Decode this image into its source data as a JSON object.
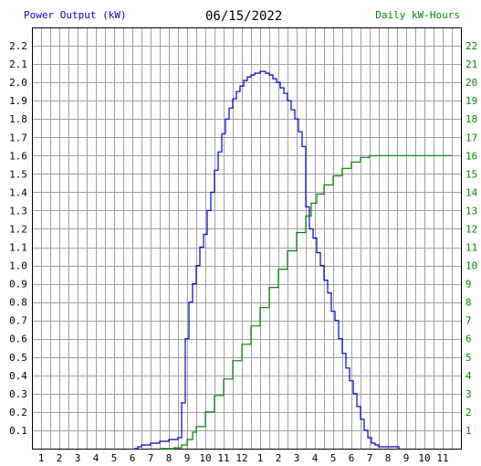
{
  "header": {
    "left_title": "Power Output (kW)",
    "date": "06/15/2022",
    "right_title": "Daily kW-Hours"
  },
  "chart_data": {
    "type": "line",
    "x_ticks": [
      "1",
      "2",
      "3",
      "4",
      "5",
      "6",
      "7",
      "8",
      "9",
      "10",
      "11",
      "12",
      "1",
      "2",
      "3",
      "4",
      "5",
      "6",
      "7",
      "8",
      "9",
      "10",
      "11"
    ],
    "ylim_left": [
      0,
      2.3
    ],
    "ylim_right": [
      0,
      23
    ],
    "y_ticks_left": [
      "0.1",
      "0.2",
      "0.3",
      "0.4",
      "0.5",
      "0.6",
      "0.7",
      "0.8",
      "0.9",
      "1.0",
      "1.1",
      "1.2",
      "1.3",
      "1.4",
      "1.5",
      "1.6",
      "1.7",
      "1.8",
      "1.9",
      "2.0",
      "2.1",
      "2.2"
    ],
    "y_ticks_right": [
      "1",
      "2",
      "3",
      "4",
      "5",
      "6",
      "7",
      "8",
      "9",
      "10",
      "11",
      "12",
      "13",
      "14",
      "15",
      "16",
      "17",
      "18",
      "19",
      "20",
      "21",
      "22"
    ],
    "grid": true,
    "colors": {
      "power": "#0000cc",
      "energy": "#008800",
      "grid": "#a0a0a0"
    },
    "series": [
      {
        "axis": "left",
        "color": "#0000cc",
        "points": [
          [
            5.6,
            0
          ],
          [
            5.8,
            0.01
          ],
          [
            6.0,
            0.02
          ],
          [
            6.5,
            0.03
          ],
          [
            7.0,
            0.04
          ],
          [
            7.5,
            0.05
          ],
          [
            8.0,
            0.06
          ],
          [
            8.2,
            0.25
          ],
          [
            8.4,
            0.6
          ],
          [
            8.6,
            0.8
          ],
          [
            8.8,
            0.9
          ],
          [
            9.0,
            1.0
          ],
          [
            9.2,
            1.1
          ],
          [
            9.4,
            1.17
          ],
          [
            9.6,
            1.3
          ],
          [
            9.8,
            1.4
          ],
          [
            10.0,
            1.52
          ],
          [
            10.2,
            1.62
          ],
          [
            10.4,
            1.72
          ],
          [
            10.6,
            1.8
          ],
          [
            10.8,
            1.86
          ],
          [
            11.0,
            1.91
          ],
          [
            11.2,
            1.95
          ],
          [
            11.4,
            1.98
          ],
          [
            11.6,
            2.01
          ],
          [
            11.8,
            2.03
          ],
          [
            12.0,
            2.04
          ],
          [
            12.2,
            2.05
          ],
          [
            12.5,
            2.06
          ],
          [
            12.8,
            2.05
          ],
          [
            13.0,
            2.04
          ],
          [
            13.2,
            2.02
          ],
          [
            13.4,
            2.0
          ],
          [
            13.6,
            1.97
          ],
          [
            13.8,
            1.94
          ],
          [
            14.0,
            1.9
          ],
          [
            14.2,
            1.85
          ],
          [
            14.4,
            1.8
          ],
          [
            14.6,
            1.73
          ],
          [
            14.8,
            1.65
          ],
          [
            15.0,
            1.32
          ],
          [
            15.2,
            1.2
          ],
          [
            15.4,
            1.15
          ],
          [
            15.6,
            1.07
          ],
          [
            15.8,
            1.0
          ],
          [
            16.0,
            0.92
          ],
          [
            16.2,
            0.85
          ],
          [
            16.4,
            0.75
          ],
          [
            16.6,
            0.7
          ],
          [
            16.8,
            0.6
          ],
          [
            17.0,
            0.52
          ],
          [
            17.2,
            0.44
          ],
          [
            17.4,
            0.37
          ],
          [
            17.6,
            0.3
          ],
          [
            17.8,
            0.23
          ],
          [
            18.0,
            0.16
          ],
          [
            18.2,
            0.1
          ],
          [
            18.4,
            0.06
          ],
          [
            18.6,
            0.03
          ],
          [
            18.8,
            0.02
          ],
          [
            19.0,
            0.01
          ],
          [
            20.0,
            0.01
          ],
          [
            20.1,
            0
          ]
        ]
      },
      {
        "axis": "right",
        "color": "#008800",
        "points": [
          [
            7.0,
            0
          ],
          [
            7.8,
            0.05
          ],
          [
            8.2,
            0.2
          ],
          [
            8.5,
            0.5
          ],
          [
            8.8,
            0.9
          ],
          [
            9.0,
            1.2
          ],
          [
            9.5,
            2.0
          ],
          [
            10.0,
            2.9
          ],
          [
            10.5,
            3.8
          ],
          [
            11.0,
            4.8
          ],
          [
            11.5,
            5.7
          ],
          [
            12.0,
            6.7
          ],
          [
            12.5,
            7.7
          ],
          [
            13.0,
            8.8
          ],
          [
            13.5,
            9.8
          ],
          [
            14.0,
            10.8
          ],
          [
            14.5,
            11.8
          ],
          [
            15.0,
            12.7
          ],
          [
            15.3,
            13.4
          ],
          [
            15.6,
            13.9
          ],
          [
            16.0,
            14.4
          ],
          [
            16.5,
            14.9
          ],
          [
            17.0,
            15.3
          ],
          [
            17.5,
            15.65
          ],
          [
            18.0,
            15.9
          ],
          [
            18.5,
            16.0
          ],
          [
            23.0,
            16.0
          ]
        ]
      }
    ]
  }
}
